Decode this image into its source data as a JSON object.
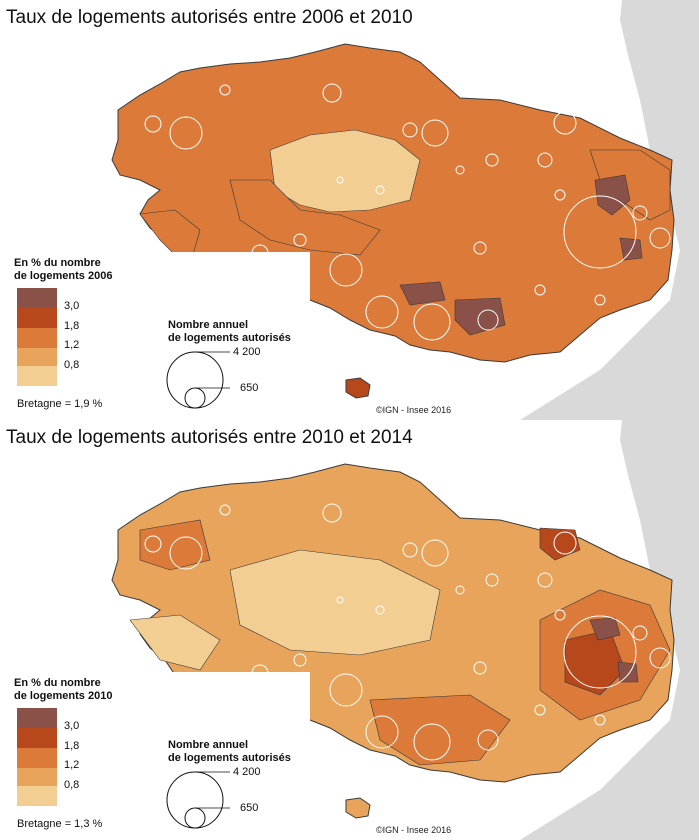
{
  "panels": [
    {
      "title": "Taux de logements autorisés entre 2006 et 2010",
      "legend_title_line1": "En % du nombre",
      "legend_title_line2": "de logements 2006",
      "legend_ticks": [
        "3,0",
        "1,8",
        "1,2",
        "0,8"
      ],
      "legend_colors": [
        "#8a5148",
        "#b6481b",
        "#db7a39",
        "#e7a45a",
        "#f3ce93"
      ],
      "region_average": "Bretagne = 1,9 %",
      "size_title_line1": "Nombre annuel",
      "size_title_line2": "de logements autorisés",
      "size_values": [
        "4 200",
        "650"
      ],
      "credit": "©IGN - Insee 2016"
    },
    {
      "title": "Taux de logements autorisés entre 2010 et 2014",
      "legend_title_line1": "En % du nombre",
      "legend_title_line2": "de logements 2010",
      "legend_ticks": [
        "3,0",
        "1,8",
        "1,2",
        "0,8"
      ],
      "legend_colors": [
        "#8a5148",
        "#b6481b",
        "#db7a39",
        "#e7a45a",
        "#f3ce93"
      ],
      "region_average": "Bretagne = 1,3 %",
      "size_title_line1": "Nombre annuel",
      "size_title_line2": "de logements autorisés",
      "size_values": [
        "4 200",
        "650"
      ],
      "credit": "©IGN - Insee 2016"
    }
  ],
  "map_colors": {
    "sea": "#ffffff",
    "neighbor_land": "#d9d9d9",
    "district_border": "#3a3a3a",
    "circle_stroke": "#ffffff"
  }
}
